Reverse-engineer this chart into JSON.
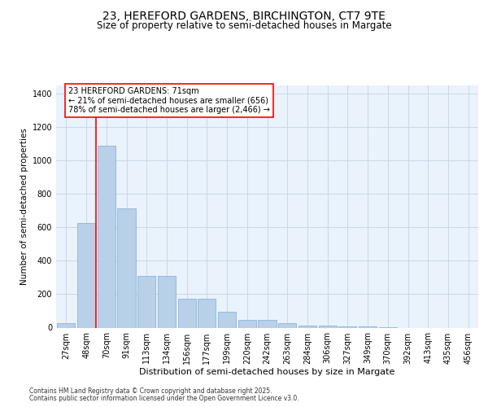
{
  "title_line1": "23, HEREFORD GARDENS, BIRCHINGTON, CT7 9TE",
  "title_line2": "Size of property relative to semi-detached houses in Margate",
  "xlabel": "Distribution of semi-detached houses by size in Margate",
  "ylabel": "Number of semi-detached properties",
  "categories": [
    "27sqm",
    "48sqm",
    "70sqm",
    "91sqm",
    "113sqm",
    "134sqm",
    "156sqm",
    "177sqm",
    "199sqm",
    "220sqm",
    "242sqm",
    "263sqm",
    "284sqm",
    "306sqm",
    "327sqm",
    "349sqm",
    "370sqm",
    "392sqm",
    "413sqm",
    "435sqm",
    "456sqm"
  ],
  "values": [
    27,
    627,
    1090,
    715,
    308,
    308,
    175,
    175,
    93,
    47,
    47,
    27,
    10,
    10,
    5,
    5,
    2,
    0,
    0,
    0,
    0
  ],
  "bar_color": "#b8d0e8",
  "bar_edge_color": "#7badd4",
  "property_line_x": 1.5,
  "annotation_text": "23 HEREFORD GARDENS: 71sqm\n← 21% of semi-detached houses are smaller (656)\n78% of semi-detached houses are larger (2,466) →",
  "ylim": [
    0,
    1450
  ],
  "yticks": [
    0,
    200,
    400,
    600,
    800,
    1000,
    1200,
    1400
  ],
  "grid_color": "#c8d8e8",
  "bg_color": "#eaf2fb",
  "footer_line1": "Contains HM Land Registry data © Crown copyright and database right 2025.",
  "footer_line2": "Contains public sector information licensed under the Open Government Licence v3.0.",
  "title_fontsize": 10,
  "subtitle_fontsize": 8.5,
  "ylabel_fontsize": 7.5,
  "xlabel_fontsize": 8,
  "tick_fontsize": 7,
  "annot_fontsize": 7,
  "footer_fontsize": 5.5
}
